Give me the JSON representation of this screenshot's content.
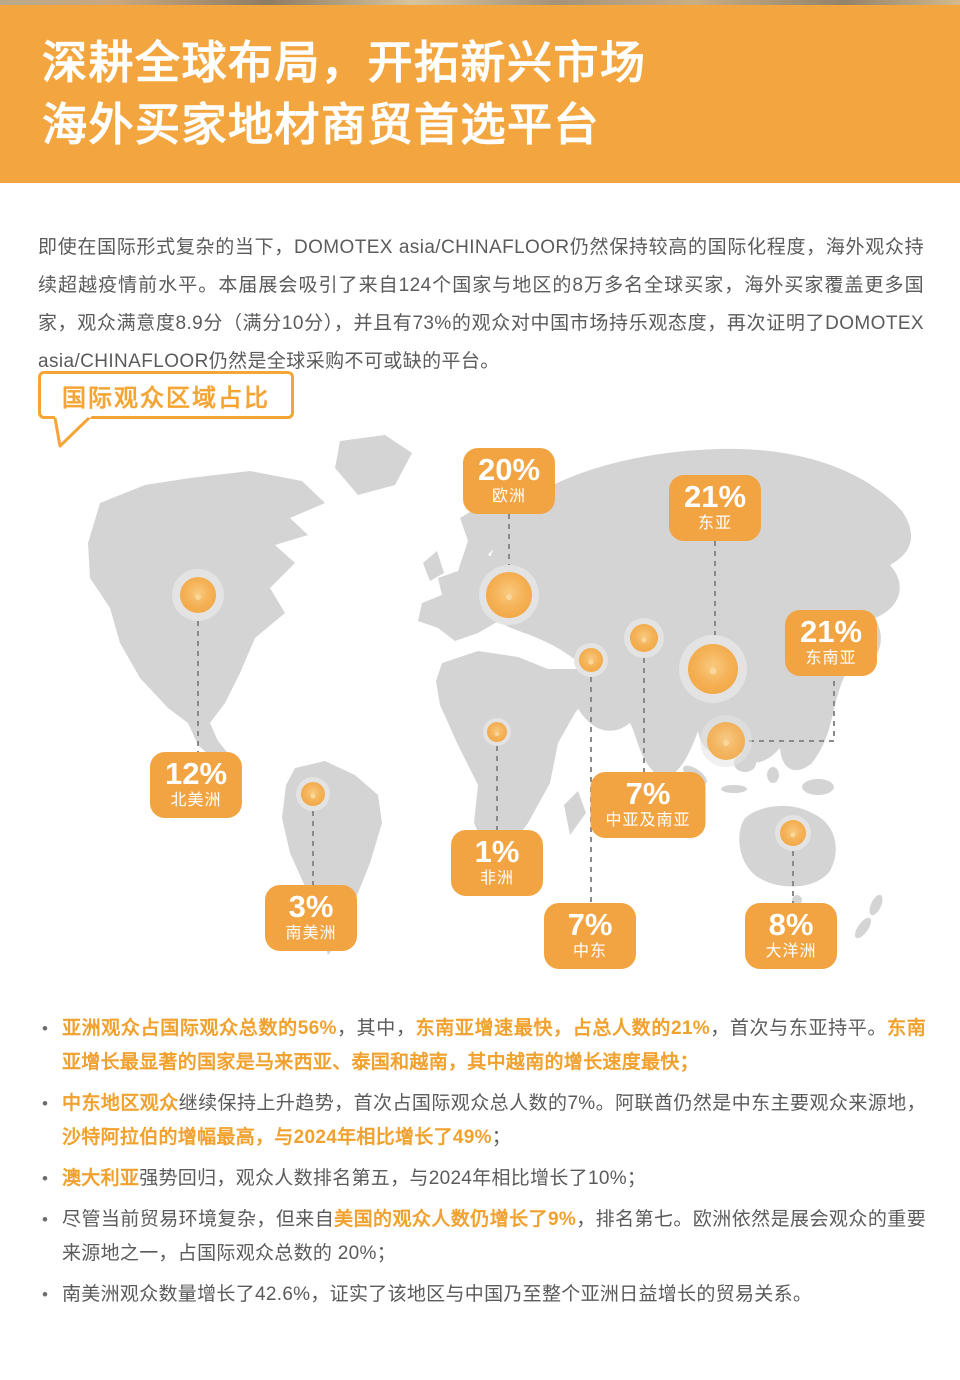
{
  "header": {
    "title_line1": "深耕全球布局，开拓新兴市场",
    "title_line2": "海外买家地材商贸首选平台"
  },
  "intro": {
    "text": "即使在国际形式复杂的当下，DOMOTEX asia/CHINAFLOOR仍然保持较高的国际化程度，海外观众持续超越疫情前水平。本届展会吸引了来自124个国家与地区的8万多名全球买家，海外买家覆盖更多国家，观众满意度8.9分（满分10分），并且有73%的观众对中国市场持乐观态度，再次证明了DOMOTEX asia/CHINAFLOOR仍然是全球采购不可或缺的平台。"
  },
  "map_section": {
    "label": "国际观众区域占比",
    "regions": [
      {
        "id": "europe",
        "pct": "20%",
        "name": "欧洲"
      },
      {
        "id": "east-asia",
        "pct": "21%",
        "name": "东亚"
      },
      {
        "id": "southeast-asia",
        "pct": "21%",
        "name": "东南亚"
      },
      {
        "id": "north-america",
        "pct": "12%",
        "name": "北美洲"
      },
      {
        "id": "central-south-asia",
        "pct": "7%",
        "name": "中亚及南亚"
      },
      {
        "id": "africa",
        "pct": "1%",
        "name": "非洲"
      },
      {
        "id": "south-america",
        "pct": "3%",
        "name": "南美洲"
      },
      {
        "id": "middle-east",
        "pct": "7%",
        "name": "中东"
      },
      {
        "id": "oceania",
        "pct": "8%",
        "name": "大洋洲"
      }
    ]
  },
  "bullets": [
    {
      "segments": [
        {
          "text": "亚洲观众占国际观众总数的56%",
          "highlight": true
        },
        {
          "text": "，其中，",
          "highlight": false
        },
        {
          "text": "东南亚增速最快，占总人数的21%",
          "highlight": true
        },
        {
          "text": "，首次与东亚持平。",
          "highlight": false
        },
        {
          "text": "东南亚增长最显著的国家是马来西亚、泰国和越南，其中越南的增长速度最快；",
          "highlight": true
        }
      ]
    },
    {
      "segments": [
        {
          "text": "中东地区观众",
          "highlight": true
        },
        {
          "text": "继续保持上升趋势，首次占国际观众总人数的7%。阿联酋仍然是中东主要观众来源地，",
          "highlight": false
        },
        {
          "text": "沙特阿拉伯的增幅最高，与2024年相比增长了49%",
          "highlight": true
        },
        {
          "text": "；",
          "highlight": false
        }
      ]
    },
    {
      "segments": [
        {
          "text": "澳大利亚",
          "highlight": true
        },
        {
          "text": "强势回归，观众人数排名第五，与2024年相比增长了10%；",
          "highlight": false
        }
      ]
    },
    {
      "segments": [
        {
          "text": "尽管当前贸易环境复杂，但来自",
          "highlight": false
        },
        {
          "text": "美国的观众人数仍增长了9%",
          "highlight": true
        },
        {
          "text": "，排名第七。欧洲依然是展会观众的重要来源地之一，占国际观众总数的 20%；",
          "highlight": false
        }
      ]
    },
    {
      "segments": [
        {
          "text": "南美洲观众数量增长了42.6%，证实了该地区与中国乃至整个亚洲日益增长的贸易关系。",
          "highlight": false
        }
      ]
    }
  ],
  "colors": {
    "banner": "#F3A640",
    "badge": "#F2A442",
    "accent_text": "#F1A12E",
    "label_border": "#F5A536",
    "map_land": "#D4D4D4",
    "body_text": "#5b5b5b"
  }
}
